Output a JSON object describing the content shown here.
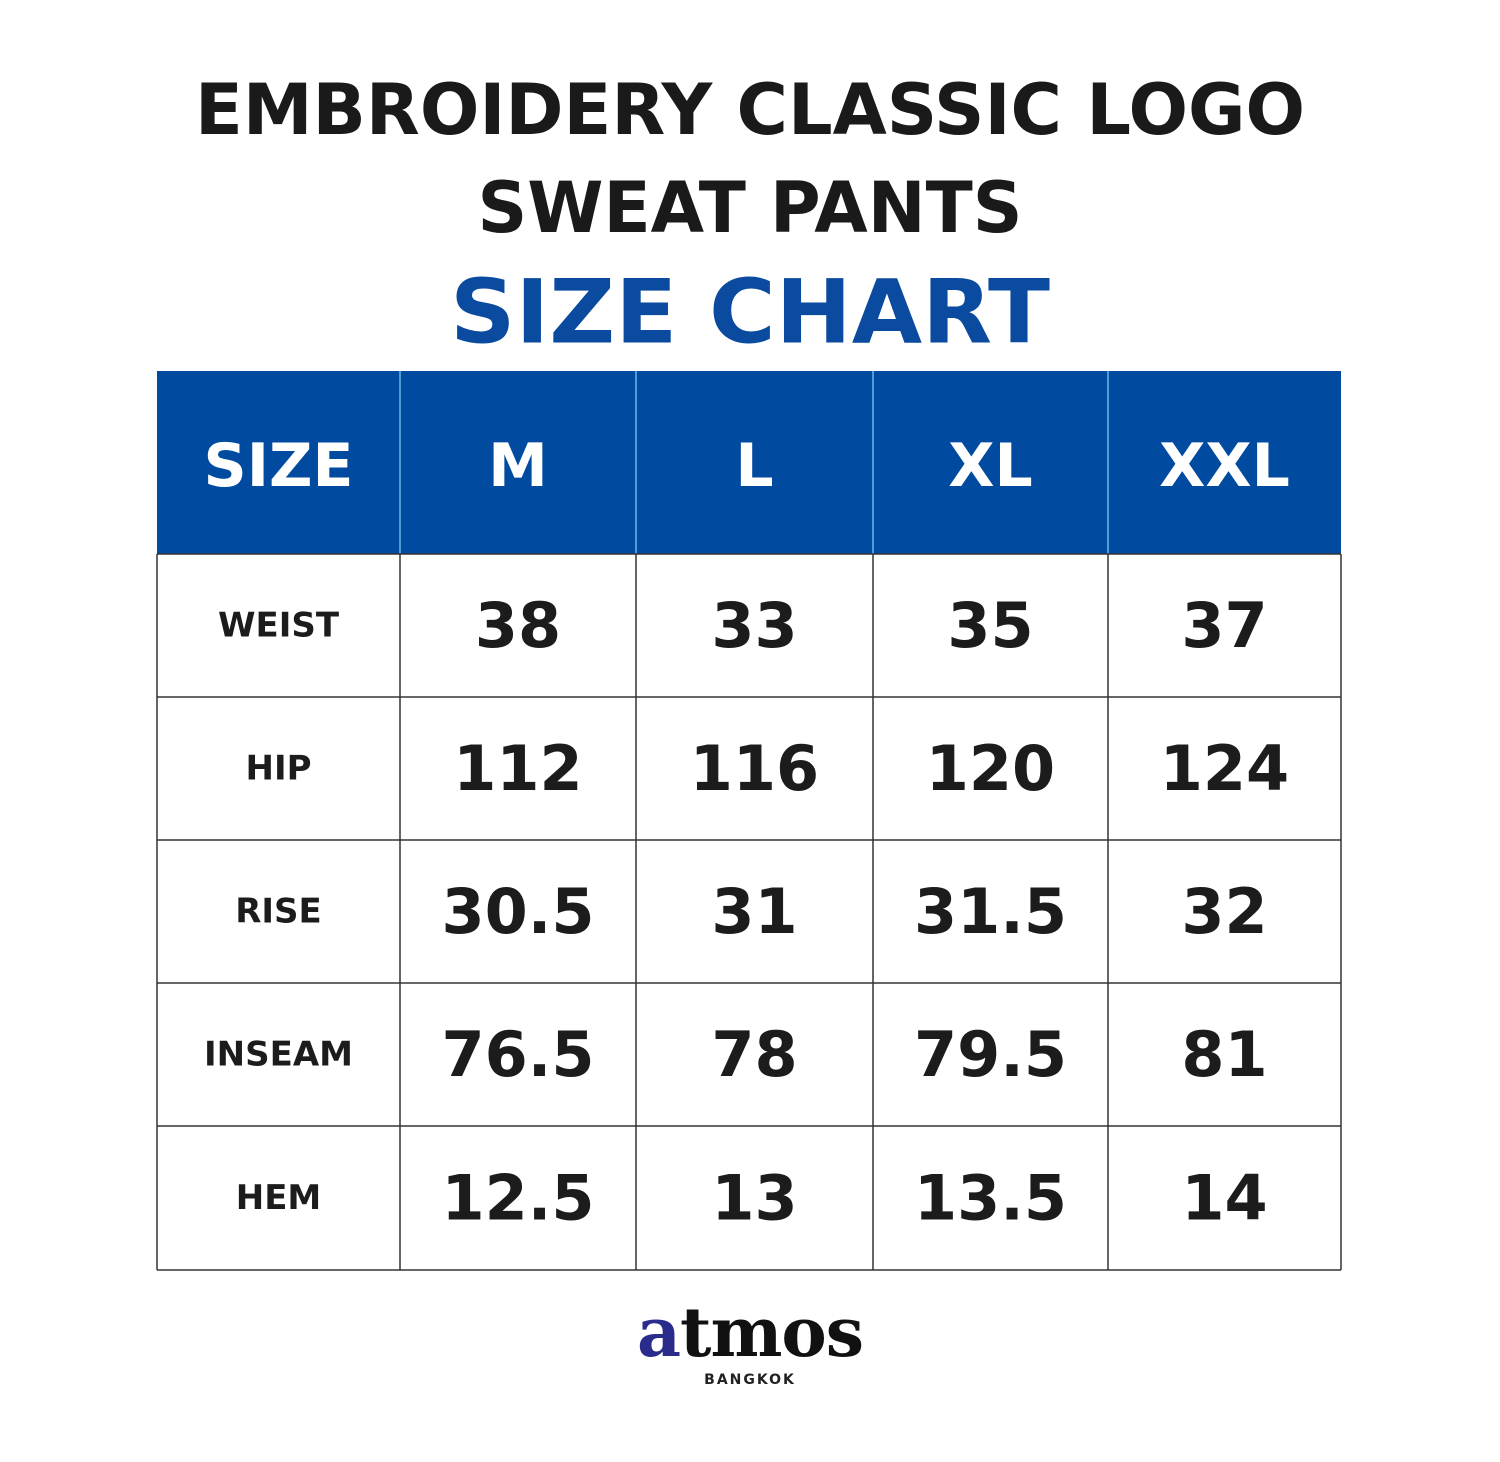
{
  "header": {
    "title_lines": [
      "EMBROIDERY CLASSIC LOGO",
      "SWEAT PANTS"
    ],
    "subtitle": "SIZE CHART"
  },
  "table": {
    "columns": [
      "SIZE",
      "M",
      "L",
      "XL",
      "XXL"
    ],
    "rows": [
      [
        "WEIST",
        38,
        33,
        35,
        37
      ],
      [
        "HIP",
        112,
        116,
        120,
        124
      ],
      [
        "RISE",
        30.5,
        31,
        31.5,
        32
      ],
      [
        "INSEAM",
        76.5,
        78,
        79.5,
        81
      ],
      [
        "HEM",
        12.5,
        13,
        13.5,
        14
      ]
    ]
  },
  "logo": {
    "name": "atmos",
    "location": "BANGKOK"
  }
}
